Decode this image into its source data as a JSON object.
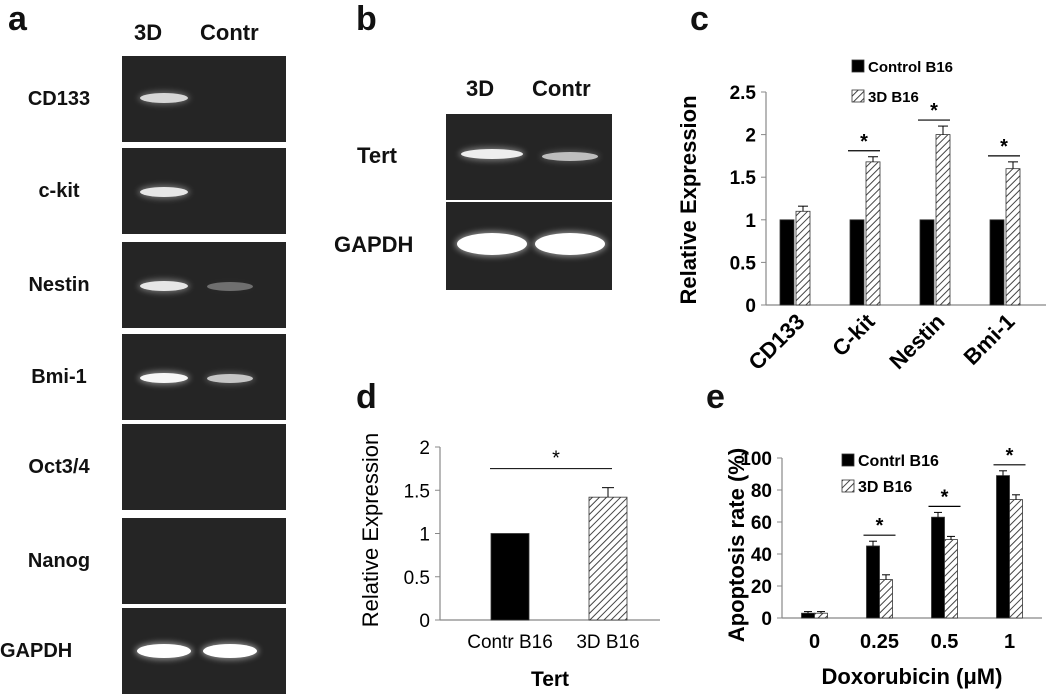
{
  "panel_a": {
    "letter": "a",
    "lanes": [
      "3D",
      "Contr"
    ],
    "rows": [
      {
        "gene": "CD133",
        "band_3d": 0.75,
        "band_contr": 0.0
      },
      {
        "gene": "c-kit",
        "band_3d": 0.85,
        "band_contr": 0.0
      },
      {
        "gene": "Nestin",
        "band_3d": 0.85,
        "band_contr": 0.12
      },
      {
        "gene": "Bmi-1",
        "band_3d": 0.95,
        "band_contr": 0.65
      },
      {
        "gene": "Oct3/4",
        "band_3d": 0.0,
        "band_contr": 0.0
      },
      {
        "gene": "Nanog",
        "band_3d": 0.0,
        "band_contr": 0.0
      },
      {
        "gene": "GAPDH",
        "band_3d": 1.0,
        "band_contr": 1.0
      }
    ]
  },
  "panel_b": {
    "letter": "b",
    "lanes": [
      "3D",
      "Contr"
    ],
    "rows": [
      {
        "gene": "Tert",
        "band_3d": 0.9,
        "band_contr": 0.6
      },
      {
        "gene": "GAPDH",
        "band_3d": 1.0,
        "band_contr": 1.0
      }
    ]
  },
  "chart_data": [
    {
      "panel": "c",
      "type": "bar",
      "ylabel": "Relative Expression",
      "categories": [
        "CD133",
        "C-kit",
        "Nestin",
        "Bmi-1"
      ],
      "ylim": [
        0,
        2.5
      ],
      "yticks": [
        "0",
        "0.5",
        "1",
        "1.5",
        "2",
        "2.5"
      ],
      "series": [
        {
          "name": "Control B16",
          "values": [
            1,
            1,
            1,
            1
          ],
          "errors": [
            0,
            0,
            0,
            0
          ],
          "color": "#000000"
        },
        {
          "name": "3D B16",
          "values": [
            1.1,
            1.68,
            2.0,
            1.6
          ],
          "errors": [
            0.06,
            0.06,
            0.1,
            0.08
          ],
          "color": "hatched"
        }
      ],
      "significance": [
        false,
        true,
        true,
        true
      ],
      "sig_mark": "*"
    },
    {
      "panel": "d",
      "type": "bar",
      "ylabel": "Relative Expression",
      "xlabel": "Tert",
      "categories": [
        "Contr B16",
        "3D B16"
      ],
      "ylim": [
        0,
        2
      ],
      "yticks": [
        "0",
        "0.5",
        "1",
        "1.5",
        "2"
      ],
      "values": [
        1.0,
        1.42
      ],
      "errors": [
        0,
        0.11
      ],
      "fills": [
        "#000000",
        "hatched"
      ],
      "sig_mark": "*"
    },
    {
      "panel": "e",
      "type": "bar",
      "ylabel": "Apoptosis rate (%)",
      "xlabel": "Doxorubicin (μM)",
      "categories": [
        "0",
        "0.25",
        "0.5",
        "1"
      ],
      "ylim": [
        0,
        100
      ],
      "yticks": [
        "0",
        "20",
        "40",
        "60",
        "80",
        "100"
      ],
      "series": [
        {
          "name": "Contrl B16",
          "values": [
            3,
            45,
            63,
            89
          ],
          "errors": [
            1,
            3,
            3,
            3
          ],
          "color": "#000000"
        },
        {
          "name": "3D B16",
          "values": [
            3,
            24,
            49,
            74
          ],
          "errors": [
            1,
            3,
            2,
            3
          ],
          "color": "hatched"
        }
      ],
      "significance": [
        false,
        true,
        true,
        true
      ],
      "sig_mark": "*"
    }
  ]
}
